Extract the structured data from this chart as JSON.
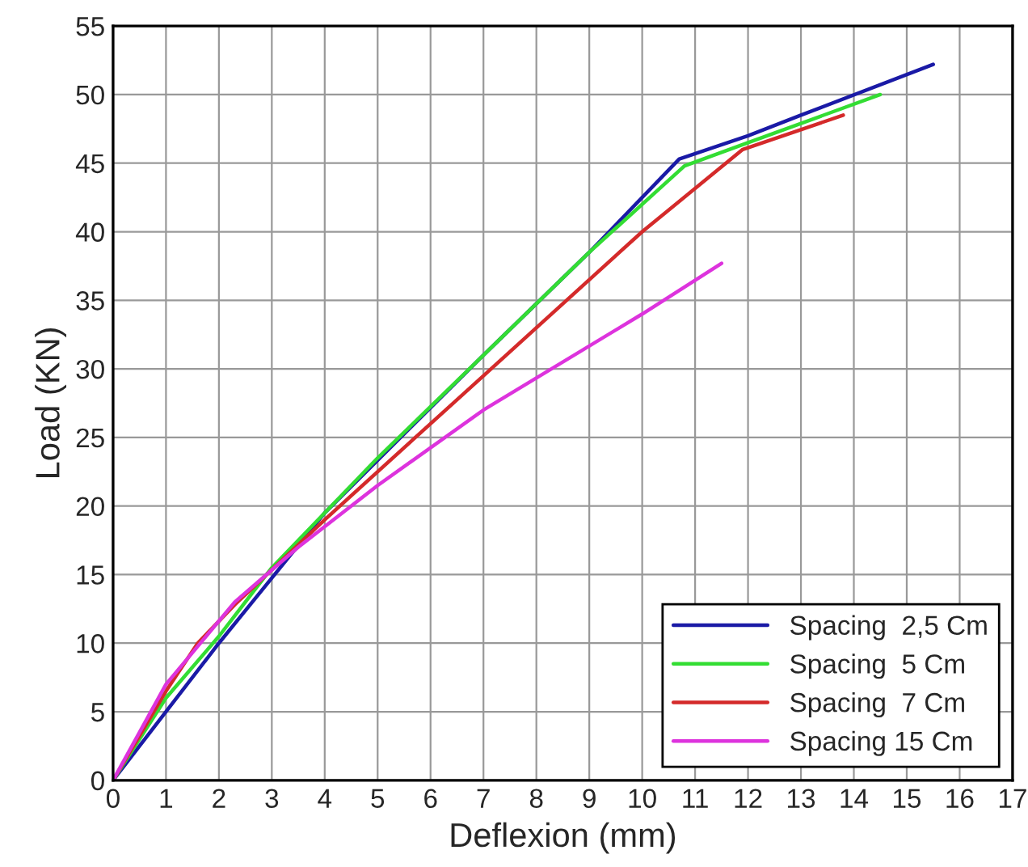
{
  "chart_data": {
    "type": "line",
    "xlabel": "Deflexion (mm)",
    "ylabel": "Load (KN)",
    "xlim": [
      0,
      17
    ],
    "xticks": [
      0,
      1,
      2,
      3,
      4,
      5,
      6,
      7,
      8,
      9,
      10,
      11,
      12,
      13,
      14,
      15,
      16,
      17
    ],
    "ylim": [
      0,
      55
    ],
    "yticks": [
      0,
      5,
      10,
      15,
      20,
      25,
      30,
      35,
      40,
      45,
      50,
      55
    ],
    "grid": true,
    "legend": "lower right",
    "marker": "none",
    "line_style": "solid",
    "series": [
      {
        "name": "Spacing  2,5 Cm",
        "color": "#1a1aa6",
        "x": [
          0,
          2,
          4,
          7,
          9,
          10.7,
          12,
          13,
          15.5
        ],
        "values": [
          0,
          10,
          19.5,
          31,
          38.5,
          45.3,
          47,
          48.5,
          52.2
        ]
      },
      {
        "name": "Spacing  5 Cm",
        "color": "#33dd33",
        "x": [
          0,
          1,
          2,
          3,
          5,
          7,
          9,
          10.8,
          12,
          14.5
        ],
        "values": [
          0,
          6,
          10.5,
          15.5,
          23.5,
          31,
          38.5,
          44.8,
          46.5,
          50
        ]
      },
      {
        "name": "Spacing  7 Cm",
        "color": "#d42a2a",
        "x": [
          0,
          1,
          1.6,
          2.3,
          4,
          7,
          10,
          11.9,
          13.8
        ],
        "values": [
          0,
          6.5,
          10,
          12.8,
          19,
          29.5,
          40,
          46,
          48.5
        ]
      },
      {
        "name": "Spacing 15 Cm",
        "color": "#dd33dd",
        "x": [
          0,
          1,
          2.3,
          3.5,
          5,
          7,
          10,
          11.5
        ],
        "values": [
          0,
          7,
          13,
          17,
          21.5,
          27,
          34,
          37.7
        ]
      }
    ]
  }
}
